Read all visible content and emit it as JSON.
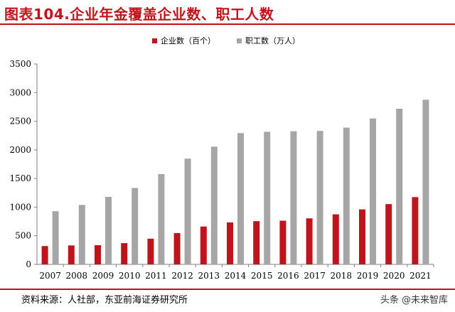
{
  "header": {
    "title": "图表104.企业年金覆盖企业数、职工人数"
  },
  "footer": {
    "source": "资料来源：人社部，东亚前海证券研究所",
    "watermark": "头条 @未来智库"
  },
  "colors": {
    "title": "#c0141c",
    "series_enterprises": "#c0141c",
    "series_employees": "#a6a6a6"
  },
  "chart_data": {
    "type": "bar",
    "categories": [
      "2007",
      "2008",
      "2009",
      "2010",
      "2011",
      "2012",
      "2013",
      "2014",
      "2015",
      "2016",
      "2017",
      "2018",
      "2019",
      "2020",
      "2021"
    ],
    "series": [
      {
        "name": "企业数（百个）",
        "color": "#c0141c",
        "values": [
          320,
          331,
          335,
          371,
          449,
          547,
          661,
          733,
          755,
          763,
          804,
          874,
          960,
          1053,
          1175
        ]
      },
      {
        "name": "职工数（万人）",
        "color": "#a6a6a6",
        "values": [
          929,
          1038,
          1179,
          1335,
          1577,
          1847,
          2056,
          2293,
          2316,
          2325,
          2331,
          2388,
          2548,
          2718,
          2875
        ]
      }
    ],
    "ylim": [
      0,
      3500
    ],
    "yticks": [
      0,
      500,
      1000,
      1500,
      2000,
      2500,
      3000,
      3500
    ],
    "grid": false,
    "legend_position": "top-center"
  }
}
